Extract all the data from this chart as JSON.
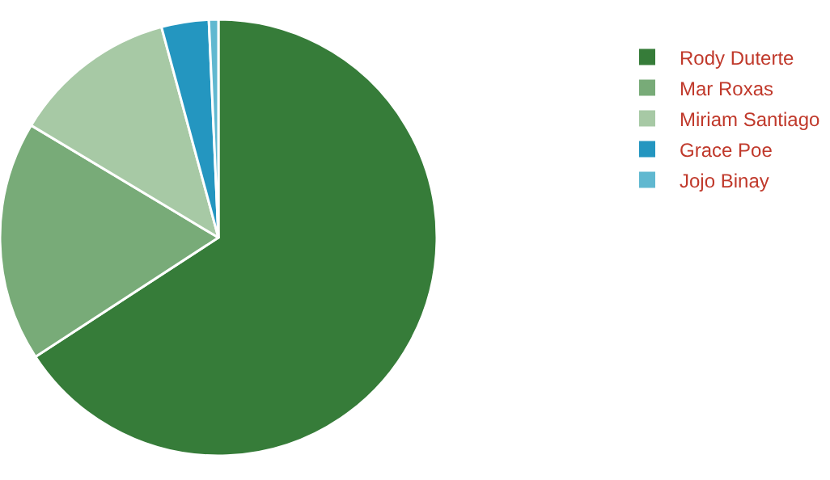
{
  "chart_data": {
    "type": "pie",
    "categories": [
      "Rody Duterte",
      "Mar Roxas",
      "Miriam Santiago",
      "Grace Poe",
      "Jojo Binay"
    ],
    "values": [
      65.8,
      17.8,
      12.2,
      3.5,
      0.7
    ],
    "colors": [
      "#367c39",
      "#78ab78",
      "#a7c9a5",
      "#2496c0",
      "#60b8d0"
    ],
    "legend": "right"
  }
}
